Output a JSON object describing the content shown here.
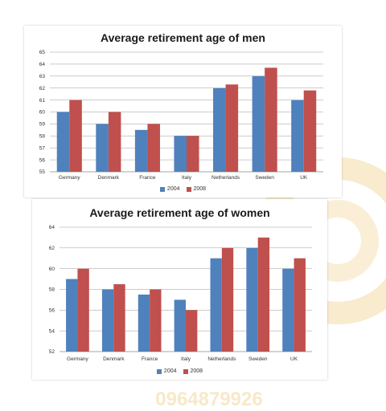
{
  "colors": {
    "series_2004": "#4f81bd",
    "series_2008": "#c0504d",
    "watermark": "#f3dba5"
  },
  "watermark_text": "0964879926",
  "chart_data": [
    {
      "type": "bar",
      "title": "Average retirement age of men",
      "categories": [
        "Germany",
        "Denmark",
        "France",
        "Italy",
        "Netherlands",
        "Sweden",
        "UK"
      ],
      "series": [
        {
          "name": "2004",
          "values": [
            60,
            59,
            58.5,
            58,
            62,
            63,
            61
          ]
        },
        {
          "name": "2008",
          "values": [
            61,
            60,
            59,
            58,
            62.3,
            63.7,
            61.8
          ]
        }
      ],
      "ylim": [
        55,
        65
      ],
      "yticks": [
        "55",
        "56",
        "57",
        "58",
        "59",
        "60",
        "61",
        "62",
        "63",
        "64",
        "65"
      ],
      "grid": true,
      "legend_position": "bottom"
    },
    {
      "type": "bar",
      "title": "Average retirement age of women",
      "categories": [
        "Germany",
        "Denmark",
        "France",
        "Italy",
        "Netherlands",
        "Sweden",
        "UK"
      ],
      "series": [
        {
          "name": "2004",
          "values": [
            59,
            58,
            57.5,
            57,
            61,
            62,
            60
          ]
        },
        {
          "name": "2008",
          "values": [
            60,
            58.5,
            58,
            56,
            62,
            63,
            61
          ]
        }
      ],
      "ylim": [
        52,
        64
      ],
      "yticks": [
        "52",
        "54",
        "56",
        "58",
        "60",
        "62",
        "64"
      ],
      "grid": true,
      "legend_position": "bottom"
    }
  ]
}
